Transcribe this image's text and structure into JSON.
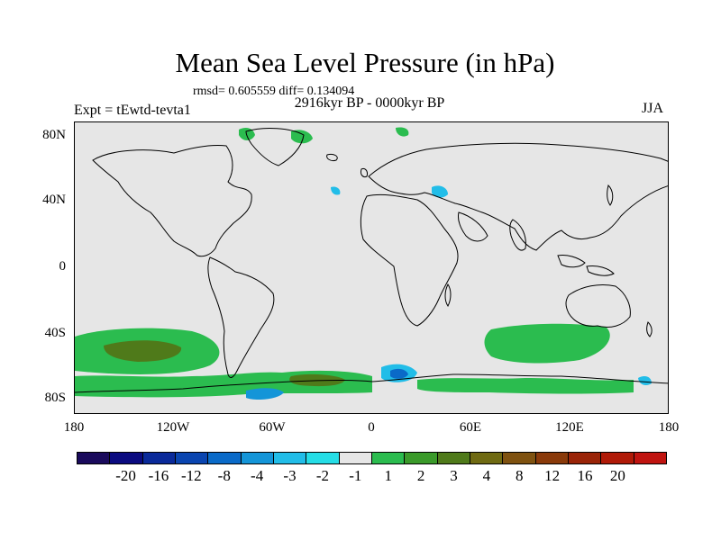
{
  "header": {
    "title": "Mean Sea Level Pressure (in hPa)",
    "stats": "rmsd= 0.605559 diff= 0.134094",
    "period": "2916kyr BP - 0000kyr BP",
    "experiment": "Expt = tEwtd-tevta1",
    "season": "JJA"
  },
  "map": {
    "projection": "cylindrical equidistant",
    "lon_range": [
      -180,
      180
    ],
    "lat_range": [
      -90,
      90
    ],
    "background_color": "#e6e6e6",
    "coastline_color": "#000000",
    "y_ticks": [
      "80N",
      "40N",
      "0",
      "40S",
      "80S"
    ],
    "x_ticks": [
      "180",
      "120W",
      "60W",
      "0",
      "60E",
      "120E",
      "180"
    ]
  },
  "colorbar": {
    "colors": [
      "#1a0a5c",
      "#0b0b80",
      "#0a2a9a",
      "#0a45b0",
      "#0a6ac8",
      "#1495d8",
      "#22bde8",
      "#25dde6",
      "#e6e6e6",
      "#2bbc4f",
      "#3a9a2a",
      "#4f7a1a",
      "#6f6a12",
      "#7f5210",
      "#8a3a0a",
      "#9a2408",
      "#b01a08",
      "#c01410"
    ],
    "labels": [
      "-20",
      "-16",
      "-12",
      "-8",
      "-4",
      "-3",
      "-2",
      "-1",
      "1",
      "2",
      "3",
      "4",
      "8",
      "12",
      "16",
      "20"
    ]
  }
}
